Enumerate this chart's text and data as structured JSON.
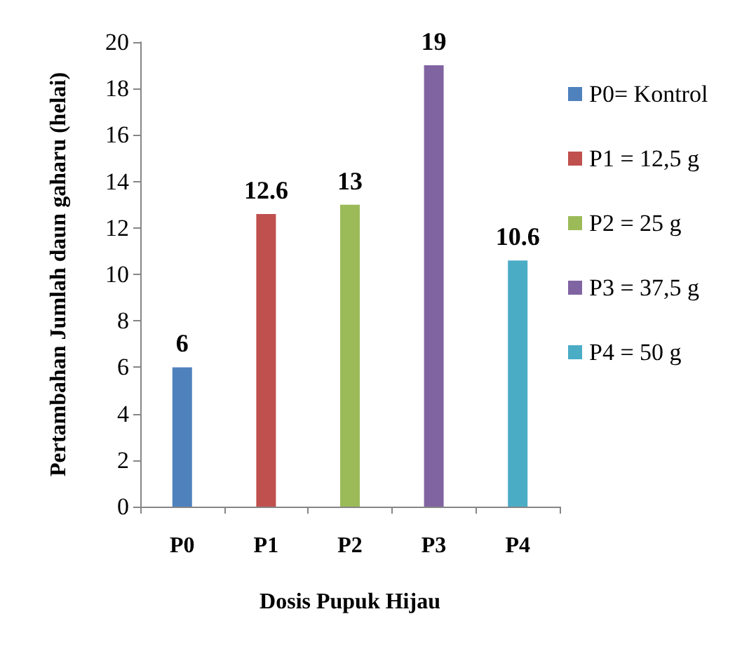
{
  "chart_data": {
    "type": "bar",
    "xlabel": "Dosis Pupuk Hijau",
    "ylabel": "Pertambahan Jumlah daun gaharu (helai)",
    "categories": [
      "P0",
      "P1",
      "P2",
      "P3",
      "P4"
    ],
    "series": [
      {
        "name": "P0= Kontrol",
        "color": "#4f81bd",
        "values": [
          6,
          null,
          null,
          null,
          null
        ]
      },
      {
        "name": "P1 = 12,5 g",
        "color": "#c0504d",
        "values": [
          null,
          12.6,
          null,
          null,
          null
        ]
      },
      {
        "name": "P2 = 25 g",
        "color": "#9bbb59",
        "values": [
          null,
          null,
          13,
          null,
          null
        ]
      },
      {
        "name": "P3 = 37,5 g",
        "color": "#8064a2",
        "values": [
          null,
          null,
          null,
          19,
          null
        ]
      },
      {
        "name": "P4 = 50 g",
        "color": "#4bacc6",
        "values": [
          null,
          null,
          null,
          null,
          10.6
        ]
      }
    ],
    "ylim": [
      0,
      20
    ],
    "yticks": [
      0,
      2,
      4,
      6,
      8,
      10,
      12,
      14,
      16,
      18,
      20
    ],
    "data_labels": true,
    "grid": false,
    "legend": "right"
  }
}
